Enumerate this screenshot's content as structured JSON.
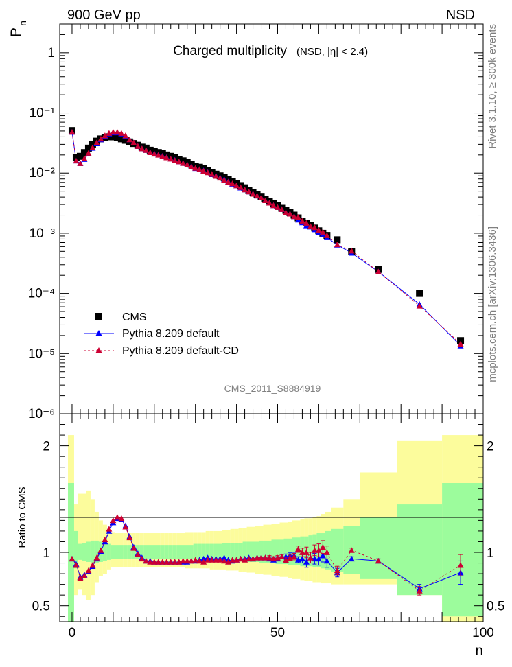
{
  "header": {
    "left_title": "900 GeV pp",
    "right_title": "NSD"
  },
  "side_text": {
    "rivet": "Rivet 3.1.10, ≥ 300k events",
    "mcplots": "mcplots.cern.ch [arXiv:1306.3436]"
  },
  "chart_data": {
    "type": "scatter",
    "title": "Charged multiplicity",
    "subtitle": "(NSD, |η| < 2.4)",
    "analysis_id": "CMS_2011_S8884919",
    "xlabel": "n",
    "ylabel": "P",
    "ylabel_sub": "n",
    "ratio_ylabel": "Ratio to CMS",
    "xlim": [
      -3,
      100
    ],
    "ylim": [
      1e-06,
      3
    ],
    "yscale": "log",
    "ratio_ylim": [
      0.35,
      2.3
    ],
    "x_ticks": [
      "0",
      "50",
      "100"
    ],
    "main_y_ticks": [
      "1",
      "10⁻¹",
      "10⁻²",
      "10⁻³",
      "10⁻⁴",
      "10⁻⁵",
      "10⁻⁶"
    ],
    "ratio_y_ticks": [
      "0.5",
      "1",
      "2"
    ],
    "legend_position": "bottom-left",
    "legend": {
      "cms": "CMS",
      "pythia_default": "Pythia 8.209 default",
      "pythia_cd": "Pythia 8.209 default-CD"
    },
    "colors": {
      "cms": "#000000",
      "pythia_default": "#0000ff",
      "pythia_cd": "#cc0033",
      "band_inner": "#9cfc9c",
      "band_outer": "#fcfc9c"
    },
    "series": [
      {
        "name": "CMS",
        "x": [
          0,
          1,
          2,
          3,
          4,
          5,
          6,
          7,
          8,
          9,
          10,
          11,
          12,
          13,
          14,
          15,
          16,
          17,
          18,
          19,
          20,
          21,
          22,
          23,
          24,
          25,
          26,
          27,
          28,
          29,
          30,
          31,
          32,
          33,
          34,
          35,
          36,
          37,
          38,
          39,
          40,
          41,
          42,
          43,
          44,
          45,
          46,
          47,
          48,
          49,
          50,
          51,
          52,
          53,
          54,
          55,
          56,
          57,
          58,
          59,
          60,
          61,
          62,
          64.5,
          68,
          74.5,
          84.5,
          94.5
        ],
        "y": [
          0.051,
          0.018,
          0.019,
          0.022,
          0.026,
          0.03,
          0.034,
          0.037,
          0.039,
          0.04,
          0.04,
          0.039,
          0.037,
          0.035,
          0.033,
          0.031,
          0.029,
          0.027,
          0.026,
          0.024,
          0.023,
          0.022,
          0.021,
          0.02,
          0.019,
          0.018,
          0.017,
          0.016,
          0.015,
          0.014,
          0.013,
          0.0125,
          0.0118,
          0.011,
          0.0103,
          0.0096,
          0.009,
          0.0084,
          0.0078,
          0.0072,
          0.0067,
          0.0062,
          0.0057,
          0.0052,
          0.0048,
          0.0044,
          0.0041,
          0.0037,
          0.0034,
          0.0031,
          0.0029,
          0.0026,
          0.0024,
          0.0022,
          0.002,
          0.0018,
          0.0016,
          0.00148,
          0.00135,
          0.00122,
          0.0011,
          0.001,
          0.00092,
          0.00078,
          0.0005,
          0.00025,
          0.0001,
          1.65e-05
        ]
      },
      {
        "name": "Pythia 8.209 default",
        "x": [
          0,
          1,
          2,
          3,
          4,
          5,
          6,
          7,
          8,
          9,
          10,
          11,
          12,
          13,
          14,
          15,
          16,
          17,
          18,
          19,
          20,
          21,
          22,
          23,
          24,
          25,
          26,
          27,
          28,
          29,
          30,
          31,
          32,
          33,
          34,
          35,
          36,
          37,
          38,
          39,
          40,
          41,
          42,
          43,
          44,
          45,
          46,
          47,
          48,
          49,
          50,
          51,
          52,
          53,
          54,
          55,
          56,
          57,
          58,
          59,
          60,
          61,
          62,
          64.5,
          68,
          74.5,
          84.5,
          94.5
        ],
        "y": [
          0.048,
          0.016,
          0.0145,
          0.017,
          0.021,
          0.026,
          0.031,
          0.036,
          0.041,
          0.045,
          0.047,
          0.047,
          0.045,
          0.041,
          0.036,
          0.032,
          0.028,
          0.0255,
          0.024,
          0.022,
          0.021,
          0.0202,
          0.0192,
          0.0183,
          0.0173,
          0.0165,
          0.0155,
          0.0146,
          0.0138,
          0.0129,
          0.012,
          0.0115,
          0.011,
          0.0103,
          0.0095,
          0.009,
          0.0084,
          0.0079,
          0.0072,
          0.0066,
          0.0062,
          0.0057,
          0.0053,
          0.0049,
          0.0045,
          0.0042,
          0.0039,
          0.0035,
          0.0032,
          0.0029,
          0.0027,
          0.0025,
          0.0022,
          0.0021,
          0.0019,
          0.00167,
          0.0015,
          0.00134,
          0.00128,
          0.00115,
          0.00103,
          0.00097,
          0.00085,
          0.00064,
          0.00047,
          0.00023,
          6.6e-05,
          1.35e-05
        ]
      },
      {
        "name": "Pythia 8.209 default-CD",
        "x": [
          0,
          1,
          2,
          3,
          4,
          5,
          6,
          7,
          8,
          9,
          10,
          11,
          12,
          13,
          14,
          15,
          16,
          17,
          18,
          19,
          20,
          21,
          22,
          23,
          24,
          25,
          26,
          27,
          28,
          29,
          30,
          31,
          32,
          33,
          34,
          35,
          36,
          37,
          38,
          39,
          40,
          41,
          42,
          43,
          44,
          45,
          46,
          47,
          48,
          49,
          50,
          51,
          52,
          53,
          54,
          55,
          56,
          57,
          58,
          59,
          60,
          61,
          62,
          64.5,
          68,
          74.5,
          84.5,
          94.5
        ],
        "y": [
          0.048,
          0.016,
          0.0145,
          0.0175,
          0.0215,
          0.0265,
          0.032,
          0.037,
          0.042,
          0.046,
          0.048,
          0.048,
          0.046,
          0.042,
          0.036,
          0.032,
          0.028,
          0.0255,
          0.024,
          0.022,
          0.0208,
          0.02,
          0.019,
          0.0181,
          0.0172,
          0.0163,
          0.0155,
          0.0146,
          0.0138,
          0.0128,
          0.0121,
          0.0115,
          0.0108,
          0.0102,
          0.0096,
          0.0089,
          0.0083,
          0.0077,
          0.0071,
          0.0067,
          0.0062,
          0.0058,
          0.0053,
          0.0049,
          0.0045,
          0.0042,
          0.0039,
          0.0035,
          0.0032,
          0.0029,
          0.0027,
          0.0025,
          0.0022,
          0.0021,
          0.0019,
          0.00185,
          0.0016,
          0.00148,
          0.0013,
          0.00125,
          0.00113,
          0.00105,
          0.00092,
          0.00065,
          0.00051,
          0.00023,
          6.2e-05,
          1.45e-05
        ]
      }
    ],
    "ratio_bands": {
      "bin_edges": [
        -1,
        0.5,
        1.5,
        2.5,
        3.5,
        4.5,
        5.5,
        6.5,
        7.5,
        8.5,
        9.5,
        10.5,
        11.5,
        12.5,
        13.5,
        14.5,
        15.5,
        16.5,
        17.5,
        18.5,
        19.5,
        20.5,
        21.5,
        22.5,
        23.5,
        24.5,
        25.5,
        26.5,
        27.5,
        28.5,
        29.5,
        30.5,
        31.5,
        32.5,
        33.5,
        34.5,
        35.5,
        36.5,
        37.5,
        38.5,
        39.5,
        40.5,
        41.5,
        42.5,
        43.5,
        44.5,
        45.5,
        46.5,
        47.5,
        48.5,
        49.5,
        50.5,
        51.5,
        52.5,
        53.5,
        54.5,
        55.5,
        56.5,
        57.5,
        58.5,
        59.5,
        60.5,
        61.5,
        63,
        66,
        70,
        79,
        90,
        100
      ],
      "inner_low": [
        0.35,
        0.85,
        0.93,
        0.92,
        0.91,
        0.9,
        0.9,
        0.91,
        0.92,
        0.93,
        0.94,
        0.94,
        0.94,
        0.94,
        0.94,
        0.94,
        0.94,
        0.94,
        0.94,
        0.94,
        0.94,
        0.94,
        0.94,
        0.94,
        0.94,
        0.94,
        0.94,
        0.94,
        0.94,
        0.94,
        0.93,
        0.93,
        0.93,
        0.93,
        0.93,
        0.93,
        0.93,
        0.92,
        0.92,
        0.92,
        0.92,
        0.92,
        0.91,
        0.91,
        0.91,
        0.91,
        0.9,
        0.9,
        0.9,
        0.9,
        0.89,
        0.89,
        0.89,
        0.88,
        0.88,
        0.88,
        0.87,
        0.87,
        0.87,
        0.86,
        0.86,
        0.85,
        0.84,
        0.82,
        0.8,
        0.75,
        0.6,
        0.4
      ],
      "inner_high": [
        1.65,
        1.2,
        1.08,
        1.09,
        1.1,
        1.11,
        1.11,
        1.1,
        1.09,
        1.08,
        1.07,
        1.07,
        1.07,
        1.07,
        1.07,
        1.07,
        1.07,
        1.07,
        1.07,
        1.07,
        1.07,
        1.07,
        1.07,
        1.07,
        1.07,
        1.07,
        1.07,
        1.07,
        1.07,
        1.07,
        1.08,
        1.08,
        1.08,
        1.08,
        1.08,
        1.08,
        1.08,
        1.09,
        1.09,
        1.09,
        1.09,
        1.09,
        1.1,
        1.1,
        1.1,
        1.1,
        1.11,
        1.11,
        1.11,
        1.12,
        1.12,
        1.12,
        1.13,
        1.13,
        1.14,
        1.14,
        1.15,
        1.15,
        1.16,
        1.17,
        1.18,
        1.18,
        1.2,
        1.22,
        1.25,
        1.33,
        1.45,
        1.65
      ],
      "outer_low": [
        0.35,
        0.6,
        0.65,
        0.6,
        0.55,
        0.6,
        0.72,
        0.78,
        0.8,
        0.84,
        0.86,
        0.86,
        0.86,
        0.86,
        0.86,
        0.86,
        0.86,
        0.86,
        0.86,
        0.86,
        0.86,
        0.86,
        0.86,
        0.86,
        0.86,
        0.86,
        0.86,
        0.86,
        0.85,
        0.85,
        0.85,
        0.85,
        0.85,
        0.85,
        0.84,
        0.84,
        0.84,
        0.84,
        0.83,
        0.83,
        0.83,
        0.82,
        0.82,
        0.81,
        0.81,
        0.8,
        0.8,
        0.79,
        0.79,
        0.78,
        0.78,
        0.77,
        0.77,
        0.76,
        0.75,
        0.75,
        0.74,
        0.73,
        0.73,
        0.72,
        0.72,
        0.71,
        0.71,
        0.7,
        0.7,
        0.7,
        0.6,
        0.35
      ],
      "outer_high": [
        2.1,
        1.45,
        1.55,
        1.55,
        1.58,
        1.5,
        1.38,
        1.3,
        1.26,
        1.22,
        1.19,
        1.18,
        1.18,
        1.18,
        1.18,
        1.18,
        1.18,
        1.18,
        1.18,
        1.18,
        1.18,
        1.18,
        1.18,
        1.18,
        1.18,
        1.18,
        1.18,
        1.18,
        1.19,
        1.19,
        1.19,
        1.19,
        1.19,
        1.2,
        1.2,
        1.2,
        1.2,
        1.21,
        1.21,
        1.22,
        1.22,
        1.23,
        1.23,
        1.24,
        1.24,
        1.25,
        1.25,
        1.26,
        1.26,
        1.27,
        1.27,
        1.28,
        1.28,
        1.29,
        1.3,
        1.3,
        1.31,
        1.32,
        1.32,
        1.33,
        1.34,
        1.36,
        1.38,
        1.42,
        1.5,
        1.75,
        2.05,
        2.1
      ]
    },
    "ratio_series": [
      {
        "name": "Pythia 8.209 default",
        "y": [
          0.94,
          0.89,
          0.77,
          0.79,
          0.82,
          0.87,
          0.94,
          1.01,
          1.1,
          1.2,
          1.28,
          1.32,
          1.31,
          1.25,
          1.15,
          1.05,
          0.99,
          0.95,
          0.92,
          0.92,
          0.91,
          0.91,
          0.91,
          0.91,
          0.91,
          0.91,
          0.91,
          0.91,
          0.91,
          0.92,
          0.92,
          0.93,
          0.94,
          0.95,
          0.94,
          0.94,
          0.94,
          0.95,
          0.93,
          0.92,
          0.93,
          0.94,
          0.94,
          0.95,
          0.94,
          0.95,
          0.95,
          0.95,
          0.94,
          0.93,
          0.94,
          0.96,
          0.96,
          0.97,
          0.97,
          0.93,
          0.94,
          0.91,
          0.95,
          0.94,
          0.94,
          0.97,
          0.92,
          0.81,
          0.94,
          0.92,
          0.66,
          0.81
        ],
        "err": [
          0.01,
          0.01,
          0.01,
          0.01,
          0.01,
          0.01,
          0.01,
          0.01,
          0.01,
          0.01,
          0.01,
          0.01,
          0.01,
          0.01,
          0.01,
          0.01,
          0.01,
          0.01,
          0.01,
          0.01,
          0.01,
          0.01,
          0.01,
          0.01,
          0.01,
          0.01,
          0.01,
          0.01,
          0.01,
          0.01,
          0.01,
          0.01,
          0.01,
          0.01,
          0.01,
          0.01,
          0.01,
          0.01,
          0.01,
          0.01,
          0.01,
          0.01,
          0.01,
          0.01,
          0.015,
          0.015,
          0.015,
          0.015,
          0.02,
          0.02,
          0.02,
          0.02,
          0.025,
          0.025,
          0.03,
          0.03,
          0.04,
          0.05,
          0.05,
          0.05,
          0.06,
          0.06,
          0.06,
          0.04,
          0.02,
          0.02,
          0.04,
          0.11
        ]
      },
      {
        "name": "Pythia 8.209 default-CD",
        "y": [
          0.94,
          0.88,
          0.76,
          0.78,
          0.83,
          0.88,
          0.95,
          1.02,
          1.12,
          1.22,
          1.3,
          1.33,
          1.32,
          1.24,
          1.14,
          1.04,
          0.98,
          0.94,
          0.92,
          0.91,
          0.91,
          0.91,
          0.91,
          0.91,
          0.91,
          0.91,
          0.91,
          0.92,
          0.92,
          0.92,
          0.93,
          0.92,
          0.91,
          0.93,
          0.93,
          0.93,
          0.93,
          0.92,
          0.91,
          0.93,
          0.93,
          0.94,
          0.93,
          0.94,
          0.94,
          0.95,
          0.95,
          0.95,
          0.95,
          0.94,
          0.95,
          0.96,
          0.93,
          0.95,
          0.96,
          1.03,
          1.0,
          1.0,
          0.95,
          1.02,
          1.02,
          1.05,
          1.0,
          0.83,
          1.02,
          0.92,
          0.64,
          0.88
        ],
        "err": [
          0.01,
          0.01,
          0.01,
          0.01,
          0.01,
          0.01,
          0.01,
          0.01,
          0.01,
          0.01,
          0.01,
          0.01,
          0.01,
          0.01,
          0.01,
          0.01,
          0.01,
          0.01,
          0.01,
          0.01,
          0.01,
          0.01,
          0.01,
          0.01,
          0.01,
          0.01,
          0.01,
          0.01,
          0.01,
          0.01,
          0.01,
          0.01,
          0.01,
          0.01,
          0.01,
          0.01,
          0.01,
          0.01,
          0.01,
          0.01,
          0.01,
          0.01,
          0.01,
          0.01,
          0.015,
          0.015,
          0.015,
          0.015,
          0.02,
          0.02,
          0.02,
          0.02,
          0.025,
          0.025,
          0.03,
          0.03,
          0.04,
          0.05,
          0.05,
          0.05,
          0.06,
          0.06,
          0.06,
          0.04,
          0.02,
          0.02,
          0.04,
          0.1
        ]
      }
    ]
  }
}
